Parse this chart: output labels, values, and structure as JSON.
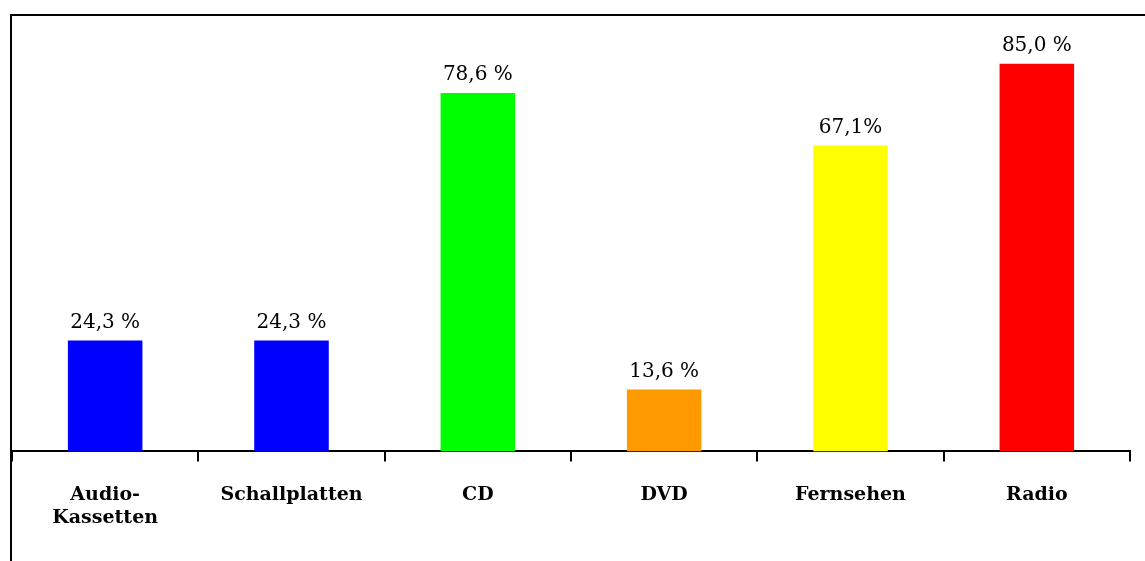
{
  "chart_data": {
    "type": "bar",
    "categories": [
      "Audio-Kassetten",
      "Schallplatten",
      "CD",
      "DVD",
      "Fernsehen",
      "Radio"
    ],
    "values": [
      24.3,
      24.3,
      78.6,
      13.6,
      67.1,
      85.0
    ],
    "colors": [
      "#0000ff",
      "#0000ff",
      "#00ff00",
      "#ff9900",
      "#ffff00",
      "#ff0000"
    ],
    "value_labels": [
      "24,3 %",
      "24,3 %",
      "78,6 %",
      "13,6 %",
      "67,1%",
      "85,0 %"
    ],
    "grid": false,
    "legend": false
  }
}
